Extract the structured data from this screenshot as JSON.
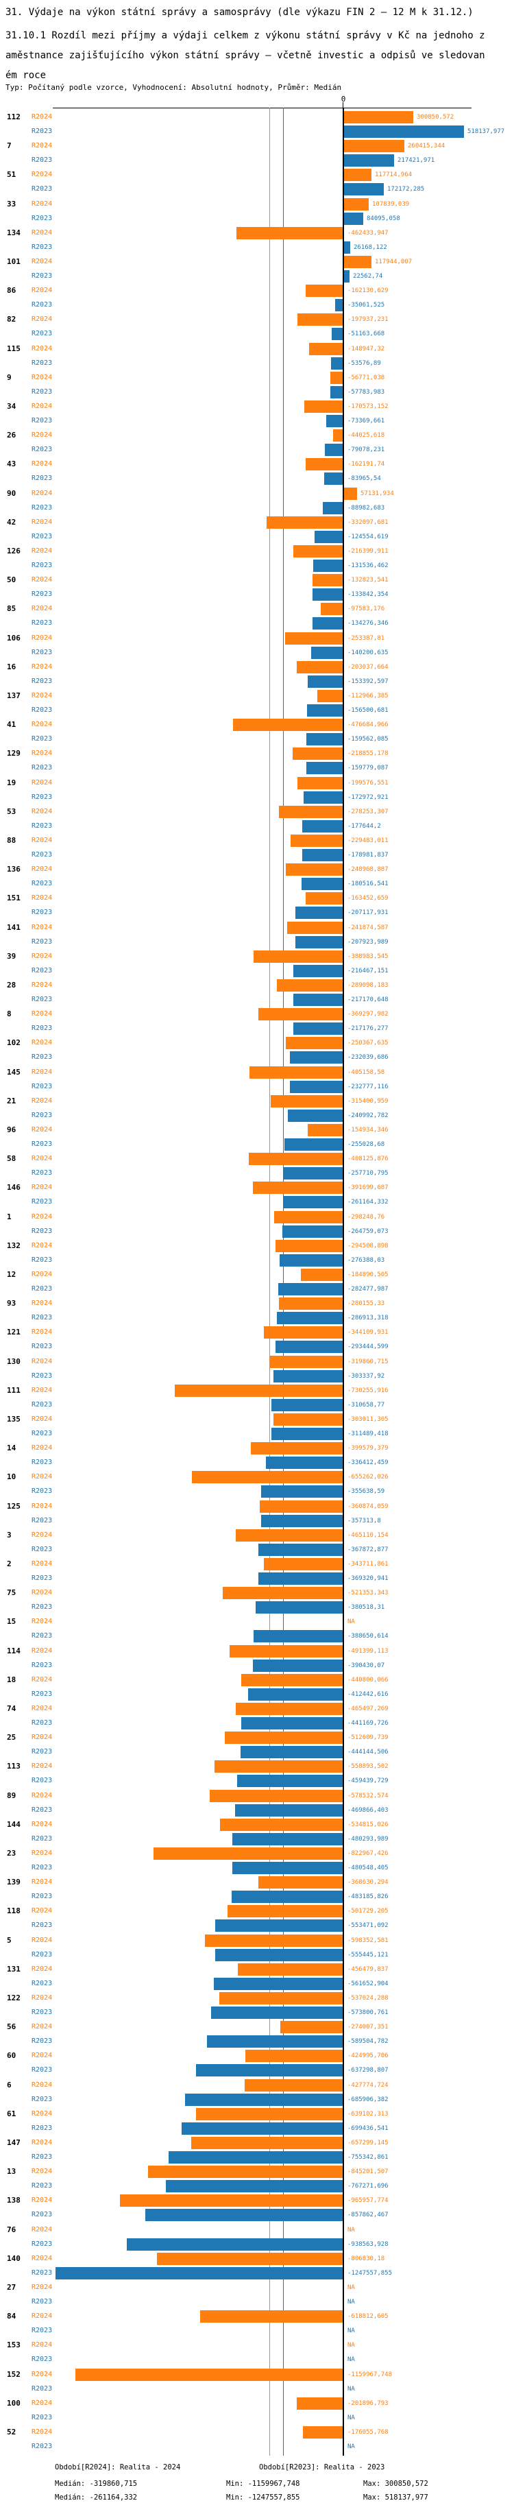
{
  "header": {
    "title": "31. Výdaje na výkon státní správy a samosprávy (dle výkazu FIN 2 – 12 M k 31.12.)",
    "subtitle": "31.10.1 Rozdíl mezi příjmy a výdaji celkem z výkonu státní správy v Kč na jednoho zaměstnance zajišťujícího výkon státní správy – včetně investic a odpisů ve sledovaném roce",
    "meta": "Typ: Počítaný podle vzorce, Vyhodnocení: Absolutní hodnoty, Průměr: Medián"
  },
  "chart_data": {
    "type": "bar",
    "orientation": "horizontal",
    "axis": {
      "zero_label": "0",
      "grid": "off",
      "value_range": [
        -1247557.855,
        518137.977
      ]
    },
    "series_labels": [
      "R2024",
      "R2023"
    ],
    "colors": {
      "r2024": "#ff7f0e",
      "r2023": "#1f77b4",
      "zero_line": "#000000"
    },
    "medians": {
      "r2024": -319860.715,
      "r2023": -261164.332
    },
    "rows": [
      {
        "id": "112",
        "r2024": "300850,572",
        "r2023": "518137,977"
      },
      {
        "id": "7",
        "r2024": "260415,344",
        "r2023": "217421,971"
      },
      {
        "id": "51",
        "r2024": "117714,964",
        "r2023": "172172,285"
      },
      {
        "id": "33",
        "r2024": "107839,039",
        "r2023": "84095,058"
      },
      {
        "id": "134",
        "r2024": "-462433,947",
        "r2023": "26168,122"
      },
      {
        "id": "101",
        "r2024": "117944,007",
        "r2023": "22562,74"
      },
      {
        "id": "86",
        "r2024": "-162130,629",
        "r2023": "-35061,525"
      },
      {
        "id": "82",
        "r2024": "-197937,231",
        "r2023": "-51163,668"
      },
      {
        "id": "115",
        "r2024": "-148947,32",
        "r2023": "-53576,89"
      },
      {
        "id": "9",
        "r2024": "-56771,038",
        "r2023": "-57783,983"
      },
      {
        "id": "34",
        "r2024": "-170573,152",
        "r2023": "-73369,661"
      },
      {
        "id": "26",
        "r2024": "-44025,618",
        "r2023": "-79078,231"
      },
      {
        "id": "43",
        "r2024": "-162191,74",
        "r2023": "-83965,54"
      },
      {
        "id": "90",
        "r2024": "57131,934",
        "r2023": "-88982,683"
      },
      {
        "id": "42",
        "r2024": "-332097,681",
        "r2023": "-124554,619"
      },
      {
        "id": "126",
        "r2024": "-216399,911",
        "r2023": "-131536,462"
      },
      {
        "id": "50",
        "r2024": "-132823,541",
        "r2023": "-133842,354"
      },
      {
        "id": "85",
        "r2024": "-97583,176",
        "r2023": "-134276,346"
      },
      {
        "id": "106",
        "r2024": "-253387,81",
        "r2023": "-140200,635"
      },
      {
        "id": "16",
        "r2024": "-203037,664",
        "r2023": "-153392,597"
      },
      {
        "id": "137",
        "r2024": "-112966,385",
        "r2023": "-156500,681"
      },
      {
        "id": "41",
        "r2024": "-476684,966",
        "r2023": "-159562,085"
      },
      {
        "id": "129",
        "r2024": "-218855,178",
        "r2023": "-159779,087"
      },
      {
        "id": "19",
        "r2024": "-199576,551",
        "r2023": "-172972,921"
      },
      {
        "id": "53",
        "r2024": "-278253,307",
        "r2023": "-177644,2"
      },
      {
        "id": "88",
        "r2024": "-229483,011",
        "r2023": "-178981,837"
      },
      {
        "id": "136",
        "r2024": "-248968,887",
        "r2023": "-180516,541"
      },
      {
        "id": "151",
        "r2024": "-163452,659",
        "r2023": "-207117,931"
      },
      {
        "id": "141",
        "r2024": "-241874,587",
        "r2023": "-207923,989"
      },
      {
        "id": "39",
        "r2024": "-388983,545",
        "r2023": "-216467,151"
      },
      {
        "id": "28",
        "r2024": "-289098,183",
        "r2023": "-217170,648"
      },
      {
        "id": "8",
        "r2024": "-369297,982",
        "r2023": "-217176,277"
      },
      {
        "id": "102",
        "r2024": "-250367,635",
        "r2023": "-232039,686"
      },
      {
        "id": "145",
        "r2024": "-405158,58",
        "r2023": "-232777,116"
      },
      {
        "id": "21",
        "r2024": "-315400,959",
        "r2023": "-240992,782"
      },
      {
        "id": "96",
        "r2024": "-154934,346",
        "r2023": "-255028,68"
      },
      {
        "id": "58",
        "r2024": "-408125,876",
        "r2023": "-257710,795"
      },
      {
        "id": "146",
        "r2024": "-391699,687",
        "r2023": "-261164,332"
      },
      {
        "id": "1",
        "r2024": "-298248,76",
        "r2023": "-264759,073"
      },
      {
        "id": "132",
        "r2024": "-294508,898",
        "r2023": "-276388,03"
      },
      {
        "id": "12",
        "r2024": "-184890,505",
        "r2023": "-282477,987"
      },
      {
        "id": "93",
        "r2024": "-280155,33",
        "r2023": "-286913,318"
      },
      {
        "id": "121",
        "r2024": "-344109,931",
        "r2023": "-293444,599"
      },
      {
        "id": "130",
        "r2024": "-319860,715",
        "r2023": "-303337,92"
      },
      {
        "id": "111",
        "r2024": "-730255,916",
        "r2023": "-310658,77"
      },
      {
        "id": "135",
        "r2024": "-303011,305",
        "r2023": "-311489,418"
      },
      {
        "id": "14",
        "r2024": "-399579,379",
        "r2023": "-336412,459"
      },
      {
        "id": "10",
        "r2024": "-655262,026",
        "r2023": "-355638,59"
      },
      {
        "id": "125",
        "r2024": "-360874,059",
        "r2023": "-357313,8"
      },
      {
        "id": "3",
        "r2024": "-465110,154",
        "r2023": "-367872,877"
      },
      {
        "id": "2",
        "r2024": "-343711,861",
        "r2023": "-369320,941"
      },
      {
        "id": "75",
        "r2024": "-521353,343",
        "r2023": "-380518,31"
      },
      {
        "id": "15",
        "r2024": "NA",
        "r2023": "-388650,614"
      },
      {
        "id": "114",
        "r2024": "-491399,113",
        "r2023": "-390430,07"
      },
      {
        "id": "18",
        "r2024": "-440800,066",
        "r2023": "-412442,616"
      },
      {
        "id": "74",
        "r2024": "-465497,269",
        "r2023": "-441169,726"
      },
      {
        "id": "25",
        "r2024": "-512609,739",
        "r2023": "-444144,506"
      },
      {
        "id": "113",
        "r2024": "-558893,502",
        "r2023": "-459439,729"
      },
      {
        "id": "89",
        "r2024": "-578532,574",
        "r2023": "-469866,403"
      },
      {
        "id": "144",
        "r2024": "-534815,026",
        "r2023": "-480293,989"
      },
      {
        "id": "23",
        "r2024": "-822967,426",
        "r2023": "-480548,405"
      },
      {
        "id": "139",
        "r2024": "-368630,294",
        "r2023": "-483185,826"
      },
      {
        "id": "118",
        "r2024": "-501729,205",
        "r2023": "-553471,092"
      },
      {
        "id": "5",
        "r2024": "-598352,581",
        "r2023": "-555445,121"
      },
      {
        "id": "131",
        "r2024": "-456479,837",
        "r2023": "-561652,904"
      },
      {
        "id": "122",
        "r2024": "-537024,288",
        "r2023": "-573800,761"
      },
      {
        "id": "56",
        "r2024": "-274007,351",
        "r2023": "-589504,782"
      },
      {
        "id": "60",
        "r2024": "-424995,706",
        "r2023": "-637298,807"
      },
      {
        "id": "6",
        "r2024": "-427774,724",
        "r2023": "-685906,382"
      },
      {
        "id": "61",
        "r2024": "-639102,313",
        "r2023": "-699436,541"
      },
      {
        "id": "147",
        "r2024": "-657299,145",
        "r2023": "-755342,861"
      },
      {
        "id": "13",
        "r2024": "-845201,507",
        "r2023": "-767271,696"
      },
      {
        "id": "138",
        "r2024": "-965957,774",
        "r2023": "-857862,467"
      },
      {
        "id": "76",
        "r2024": "NA",
        "r2023": "-938563,928"
      },
      {
        "id": "140",
        "r2024": "-806830,18",
        "r2023": "-1247557,855"
      },
      {
        "id": "27",
        "r2024": "NA",
        "r2023": "NA"
      },
      {
        "id": "84",
        "r2024": "-618812,605",
        "r2023": "NA"
      },
      {
        "id": "153",
        "r2024": "NA",
        "r2023": "NA"
      },
      {
        "id": "152",
        "r2024": "-1159967,748",
        "r2023": "NA"
      },
      {
        "id": "100",
        "r2024": "-201896,793",
        "r2023": "NA"
      },
      {
        "id": "52",
        "r2024": "-176055,768",
        "r2023": "NA"
      }
    ]
  },
  "footer": {
    "period_r2024": "Období[R2024]: Realita - 2024",
    "period_r2023": "Období[R2023]: Realita - 2023",
    "r2024": {
      "median": "Medián: -319860,715",
      "min": "Min: -1159967,748",
      "max": "Max: 300850,572"
    },
    "r2023": {
      "median": "Medián: -261164,332",
      "min": "Min: -1247557,855",
      "max": "Max: 518137,977"
    }
  }
}
